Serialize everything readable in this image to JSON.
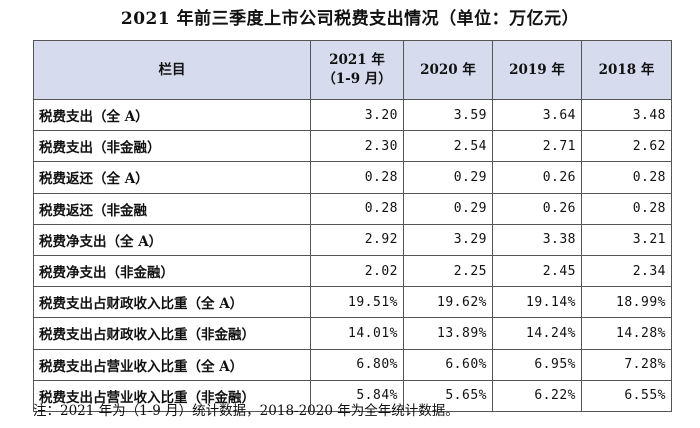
{
  "title": "2021 年前三季度上市公司税费支出情况（单位：万亿元）",
  "table": {
    "headers": [
      {
        "line1": "栏目",
        "line2": ""
      },
      {
        "line1": "2021 年",
        "line2": "（1-9 月）"
      },
      {
        "line1": "2020 年",
        "line2": ""
      },
      {
        "line1": "2019 年",
        "line2": ""
      },
      {
        "line1": "2018 年",
        "line2": ""
      }
    ],
    "rows": [
      {
        "label": "税费支出（全 A）",
        "v2021": "3.20",
        "v2020": "3.59",
        "v2019": "3.64",
        "v2018": "3.48"
      },
      {
        "label": "税费支出（非金融）",
        "v2021": "2.30",
        "v2020": "2.54",
        "v2019": "2.71",
        "v2018": "2.62"
      },
      {
        "label": "税费返还（全 A）",
        "v2021": "0.28",
        "v2020": "0.29",
        "v2019": "0.26",
        "v2018": "0.28"
      },
      {
        "label": "税费返还（非金融",
        "v2021": "0.28",
        "v2020": "0.29",
        "v2019": "0.26",
        "v2018": "0.28"
      },
      {
        "label": "税费净支出（全 A）",
        "v2021": "2.92",
        "v2020": "3.29",
        "v2019": "3.38",
        "v2018": "3.21"
      },
      {
        "label": "税费净支出（非金融）",
        "v2021": "2.02",
        "v2020": "2.25",
        "v2019": "2.45",
        "v2018": "2.34"
      },
      {
        "label": "税费支出占财政收入比重（全 A）",
        "v2021": "19.51%",
        "v2020": "19.62%",
        "v2019": "19.14%",
        "v2018": "18.99%"
      },
      {
        "label": "税费支出占财政收入比重（非金融）",
        "v2021": "14.01%",
        "v2020": "13.89%",
        "v2019": "14.24%",
        "v2018": "14.28%"
      },
      {
        "label": "税费支出占营业收入比重（全 A）",
        "v2021": "6.80%",
        "v2020": "6.60%",
        "v2019": "6.95%",
        "v2018": "7.28%"
      },
      {
        "label": "税费支出占营业收入比重（非金融）",
        "v2021": "5.84%",
        "v2020": "5.65%",
        "v2019": "6.22%",
        "v2018": "6.55%"
      }
    ]
  },
  "note": "注：2021 年为（1-9 月）统计数据，2018-2020 年为全年统计数据。",
  "colors": {
    "header_bg": "#d6dcee",
    "border": "#555555"
  }
}
